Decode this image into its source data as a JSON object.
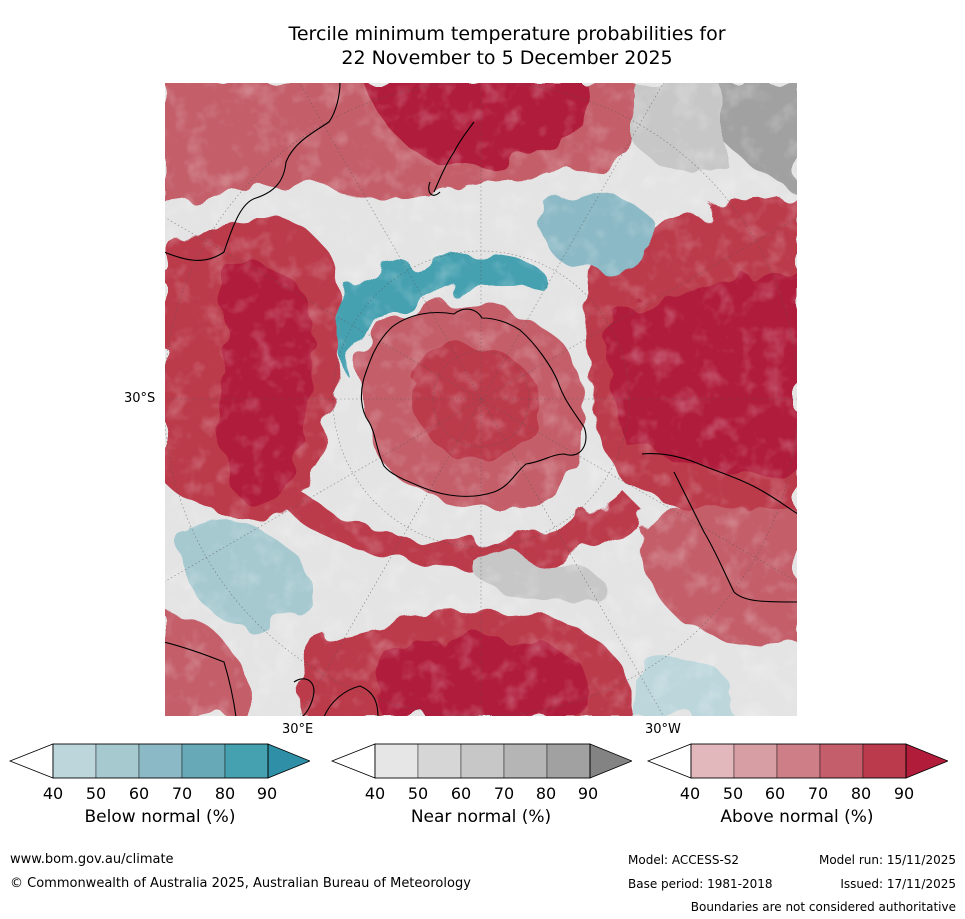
{
  "title": {
    "line1": "Tercile minimum temperature probabilities for",
    "line2": "22 November to 5 December 2025"
  },
  "map": {
    "lat_label": "30°S",
    "lon_label_east": "30°E",
    "lon_label_west": "30°W"
  },
  "colorbars": [
    {
      "label": "Below normal (%)",
      "ticks": [
        "40",
        "50",
        "60",
        "70",
        "80",
        "90"
      ],
      "colors": [
        "#ffffff",
        "#bcd6dc",
        "#a6c9d0",
        "#8bb9c5",
        "#68a9b8",
        "#45a0b0",
        "#2e8fa6"
      ]
    },
    {
      "label": "Near normal (%)",
      "ticks": [
        "40",
        "50",
        "60",
        "70",
        "80",
        "90"
      ],
      "colors": [
        "#ffffff",
        "#e6e6e6",
        "#d6d6d6",
        "#c7c7c7",
        "#b5b5b5",
        "#a1a1a1",
        "#838383"
      ]
    },
    {
      "label": "Above normal (%)",
      "ticks": [
        "40",
        "50",
        "60",
        "70",
        "80",
        "90"
      ],
      "colors": [
        "#ffffff",
        "#e3b8bd",
        "#d79ea4",
        "#cd7e87",
        "#c45e6b",
        "#bb3a4c",
        "#b01c3a"
      ]
    }
  ],
  "footer": {
    "website": "www.bom.gov.au/climate",
    "copyright": "© Commonwealth of Australia 2025, Australian Bureau of Meteorology",
    "model": "Model: ACCESS-S2",
    "base_period": "Base period: 1981-2018",
    "model_run": "Model run: 15/11/2025",
    "issued": "Issued: 17/11/2025",
    "disclaimer": "Boundaries are not considered authoritative"
  }
}
